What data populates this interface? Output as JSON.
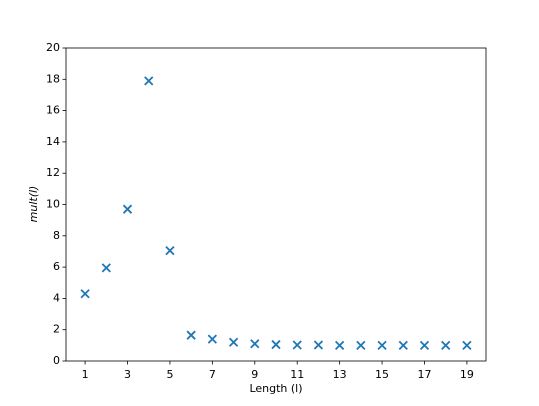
{
  "chart_data": {
    "type": "scatter",
    "xlabel": "Length (l)",
    "ylabel": "mult(l)",
    "series": [
      {
        "color": "#1f77b4",
        "marker": "x",
        "x": [
          1,
          2,
          3,
          4,
          5,
          6,
          7,
          8,
          9,
          10,
          11,
          12,
          13,
          14,
          15,
          16,
          17,
          18,
          19
        ],
        "values": [
          4.3,
          5.95,
          9.7,
          17.9,
          7.05,
          1.65,
          1.4,
          1.2,
          1.1,
          1.05,
          1.02,
          1.02,
          1.0,
          1.0,
          1.0,
          1.0,
          1.0,
          1.0,
          1.0
        ]
      }
    ],
    "xlim": [
      0.1,
      19.9
    ],
    "xticks": [
      1,
      3,
      5,
      7,
      9,
      11,
      13,
      15,
      17,
      19
    ],
    "ylim": [
      0,
      20
    ],
    "yticks": [
      0,
      2,
      4,
      6,
      8,
      10,
      12,
      14,
      16,
      18,
      20
    ]
  }
}
